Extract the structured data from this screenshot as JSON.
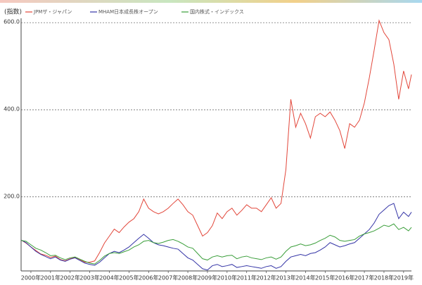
{
  "chart_data": {
    "type": "line",
    "y_label": "(指数)",
    "x": [
      1999.5,
      1999.75,
      2000,
      2000.25,
      2000.5,
      2000.75,
      2001,
      2001.25,
      2001.5,
      2001.75,
      2002,
      2002.25,
      2002.5,
      2002.75,
      2003,
      2003.25,
      2003.5,
      2003.75,
      2004,
      2004.25,
      2004.5,
      2004.75,
      2005,
      2005.25,
      2005.5,
      2005.75,
      2006,
      2006.25,
      2006.5,
      2006.75,
      2007,
      2007.25,
      2007.5,
      2007.75,
      2008,
      2008.25,
      2008.5,
      2008.75,
      2009,
      2009.25,
      2009.5,
      2009.75,
      2010,
      2010.25,
      2010.5,
      2010.75,
      2011,
      2011.25,
      2011.5,
      2011.75,
      2012,
      2012.25,
      2012.5,
      2012.75,
      2013,
      2013.25,
      2013.5,
      2013.75,
      2014,
      2014.25,
      2014.5,
      2014.75,
      2015,
      2015.25,
      2015.5,
      2015.75,
      2016,
      2016.25,
      2016.5,
      2016.75,
      2017,
      2017.25,
      2017.5,
      2017.75,
      2018,
      2018.25,
      2018.5,
      2018.75,
      2019,
      2019.25,
      2019.4
    ],
    "series": [
      {
        "name": "JPMザ・ジャパン",
        "color": "#e2463a",
        "values": [
          101,
          94,
          85,
          77,
          69,
          66,
          61,
          64,
          56,
          53,
          58,
          61,
          56,
          50,
          50,
          53,
          72,
          94,
          110,
          126,
          118,
          131,
          142,
          150,
          166,
          195,
          174,
          166,
          161,
          166,
          174,
          185,
          195,
          182,
          166,
          158,
          134,
          110,
          118,
          134,
          163,
          150,
          166,
          174,
          158,
          169,
          182,
          174,
          174,
          166,
          182,
          198,
          174,
          185,
          263,
          424,
          360,
          392,
          368,
          335,
          384,
          392,
          384,
          395,
          376,
          352,
          311,
          368,
          360,
          376,
          416,
          473,
          537,
          605,
          577,
          561,
          505,
          424,
          489,
          448,
          481
        ]
      },
      {
        "name": "MHAM日本成長株オープン",
        "color": "#3434a6",
        "values": [
          101,
          95,
          85,
          75,
          68,
          63,
          58,
          62,
          55,
          52,
          57,
          60,
          54,
          48,
          45,
          43,
          50,
          60,
          70,
          75,
          72,
          78,
          85,
          95,
          105,
          114,
          105,
          95,
          90,
          88,
          85,
          82,
          80,
          70,
          60,
          55,
          45,
          35,
          32,
          42,
          45,
          40,
          42,
          45,
          38,
          40,
          42,
          40,
          38,
          36,
          40,
          42,
          36,
          40,
          52,
          62,
          65,
          68,
          65,
          70,
          72,
          78,
          85,
          95,
          90,
          85,
          88,
          92,
          95,
          105,
          115,
          125,
          140,
          160,
          170,
          180,
          185,
          150,
          165,
          155,
          165
        ]
      },
      {
        "name": "国内株式・インデックス",
        "color": "#3a9e3a",
        "values": [
          100,
          98,
          90,
          82,
          78,
          72,
          65,
          66,
          60,
          56,
          60,
          62,
          57,
          52,
          48,
          46,
          54,
          64,
          70,
          72,
          70,
          74,
          78,
          85,
          90,
          98,
          100,
          95,
          93,
          96,
          100,
          102,
          98,
          92,
          85,
          82,
          70,
          58,
          55,
          62,
          65,
          62,
          65,
          66,
          58,
          62,
          64,
          60,
          58,
          56,
          60,
          62,
          57,
          62,
          75,
          85,
          88,
          92,
          88,
          90,
          94,
          100,
          105,
          112,
          108,
          100,
          98,
          100,
          102,
          110,
          115,
          118,
          122,
          128,
          135,
          132,
          138,
          125,
          130,
          122,
          130
        ]
      }
    ],
    "xlim": [
      1999.5,
      2019.4
    ],
    "xticks": [
      {
        "value": 2000,
        "label": "2000年"
      },
      {
        "value": 2001,
        "label": "2001年"
      },
      {
        "value": 2002,
        "label": "2002年"
      },
      {
        "value": 2003,
        "label": "2003年"
      },
      {
        "value": 2004,
        "label": "2004年"
      },
      {
        "value": 2005,
        "label": "2005年"
      },
      {
        "value": 2006,
        "label": "2006年"
      },
      {
        "value": 2007,
        "label": "2007年"
      },
      {
        "value": 2008,
        "label": "2008年"
      },
      {
        "value": 2009,
        "label": "2009年"
      },
      {
        "value": 2010,
        "label": "2010年"
      },
      {
        "value": 2011,
        "label": "2011年"
      },
      {
        "value": 2012,
        "label": "2012年"
      },
      {
        "value": 2013,
        "label": "2013年"
      },
      {
        "value": 2014,
        "label": "2014年"
      },
      {
        "value": 2015,
        "label": "2015年"
      },
      {
        "value": 2016,
        "label": "2016年"
      },
      {
        "value": 2017,
        "label": "2017年"
      },
      {
        "value": 2018,
        "label": "2018年"
      },
      {
        "value": 2019,
        "label": "2019年"
      }
    ],
    "ylim": [
      30,
      610
    ],
    "yticks": [
      {
        "value": 200,
        "label": "200.0"
      },
      {
        "value": 400,
        "label": "400.0"
      },
      {
        "value": 600,
        "label": "600.0"
      }
    ],
    "grid": true
  }
}
